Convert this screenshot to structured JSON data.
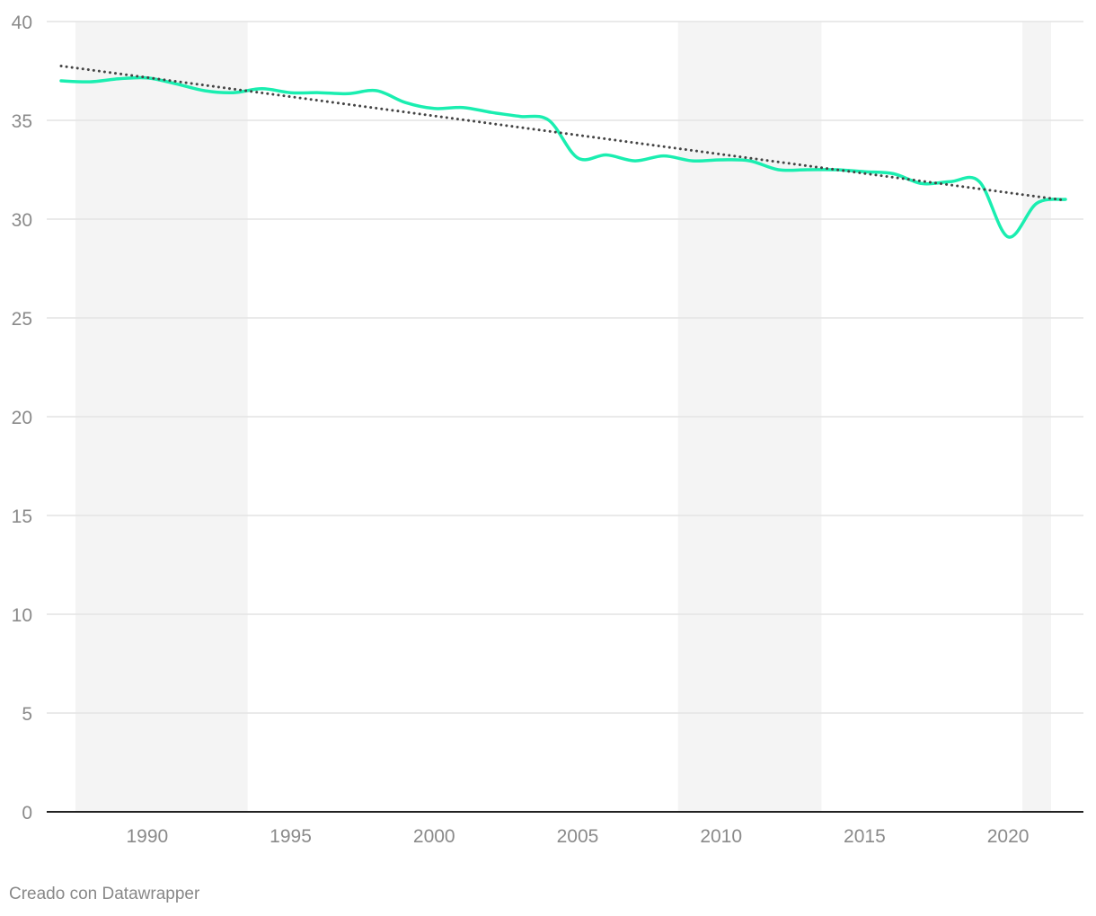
{
  "chart_data": {
    "type": "line",
    "x_range": [
      1987,
      2022
    ],
    "ylim": [
      0,
      40
    ],
    "y_ticks": [
      "0",
      "5",
      "10",
      "15",
      "20",
      "25",
      "30",
      "35",
      "40"
    ],
    "x_ticks": [
      "1990",
      "1995",
      "2000",
      "2005",
      "2010",
      "2015",
      "2020"
    ],
    "grid": true,
    "shaded_periods": [
      [
        1987.5,
        1993.5
      ],
      [
        2008.5,
        2013.5
      ],
      [
        2020.5,
        2021.5
      ]
    ],
    "series": [
      {
        "x": [
          1987,
          1988,
          1989,
          1990,
          1991,
          1992,
          1993,
          1994,
          1995,
          1996,
          1997,
          1998,
          1999,
          2000,
          2001,
          2002,
          2003,
          2004,
          2005,
          2006,
          2007,
          2008,
          2009,
          2010,
          2011,
          2012,
          2013,
          2014,
          2015,
          2016,
          2017,
          2018,
          2019,
          2020,
          2021,
          2022
        ],
        "values": [
          37.0,
          36.95,
          37.1,
          37.15,
          36.85,
          36.5,
          36.4,
          36.6,
          36.4,
          36.4,
          36.35,
          36.5,
          35.9,
          35.6,
          35.65,
          35.4,
          35.2,
          35.0,
          33.1,
          33.25,
          32.95,
          33.2,
          32.95,
          33.0,
          32.95,
          32.5,
          32.5,
          32.5,
          32.4,
          32.3,
          31.8,
          31.9,
          31.9,
          29.1,
          30.8,
          31.0
        ],
        "color": "#1aeeb0"
      }
    ],
    "trend": {
      "x": [
        1987,
        2022
      ],
      "values": [
        37.75,
        30.95
      ],
      "color": "#444444"
    },
    "shade_color": "#f4f4f4",
    "grid_color": "#e3e3e3"
  },
  "footer": {
    "credit": "Creado con Datawrapper"
  }
}
